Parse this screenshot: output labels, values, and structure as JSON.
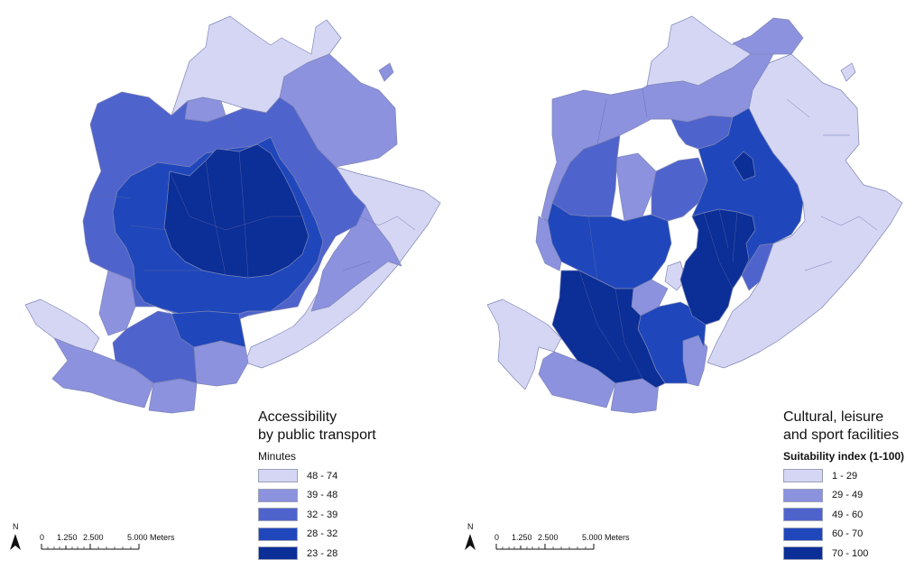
{
  "maps": [
    {
      "legend": {
        "title_line1": "Accessibility",
        "title_line2": "by public transport",
        "subtitle": "Minutes",
        "classes": [
          {
            "label": "48 - 74",
            "color": "#d5d6f4"
          },
          {
            "label": "39 - 48",
            "color": "#8c92de"
          },
          {
            "label": "32 - 39",
            "color": "#4f63cc"
          },
          {
            "label": "28 - 32",
            "color": "#1f47bb"
          },
          {
            "label": "23 - 28",
            "color": "#0b2e97"
          }
        ]
      },
      "scalebar": {
        "north": "N",
        "ticks": [
          "0",
          "1.250",
          "2.500",
          "5.000 Meters"
        ]
      }
    },
    {
      "legend": {
        "title_line1": "Cultural, leisure",
        "title_line2": "and sport facilities",
        "subtitle": "Suitability index (1-100)",
        "classes": [
          {
            "label": "1 - 29",
            "color": "#d5d6f4"
          },
          {
            "label": "29 - 49",
            "color": "#8c92de"
          },
          {
            "label": "49 - 60",
            "color": "#4f63cc"
          },
          {
            "label": "60 - 70",
            "color": "#1f47bb"
          },
          {
            "label": "70 - 100",
            "color": "#0b2e97"
          }
        ]
      },
      "scalebar": {
        "north": "N",
        "ticks": [
          "0",
          "1.250",
          "2.500",
          "5.000 Meters"
        ]
      }
    }
  ]
}
